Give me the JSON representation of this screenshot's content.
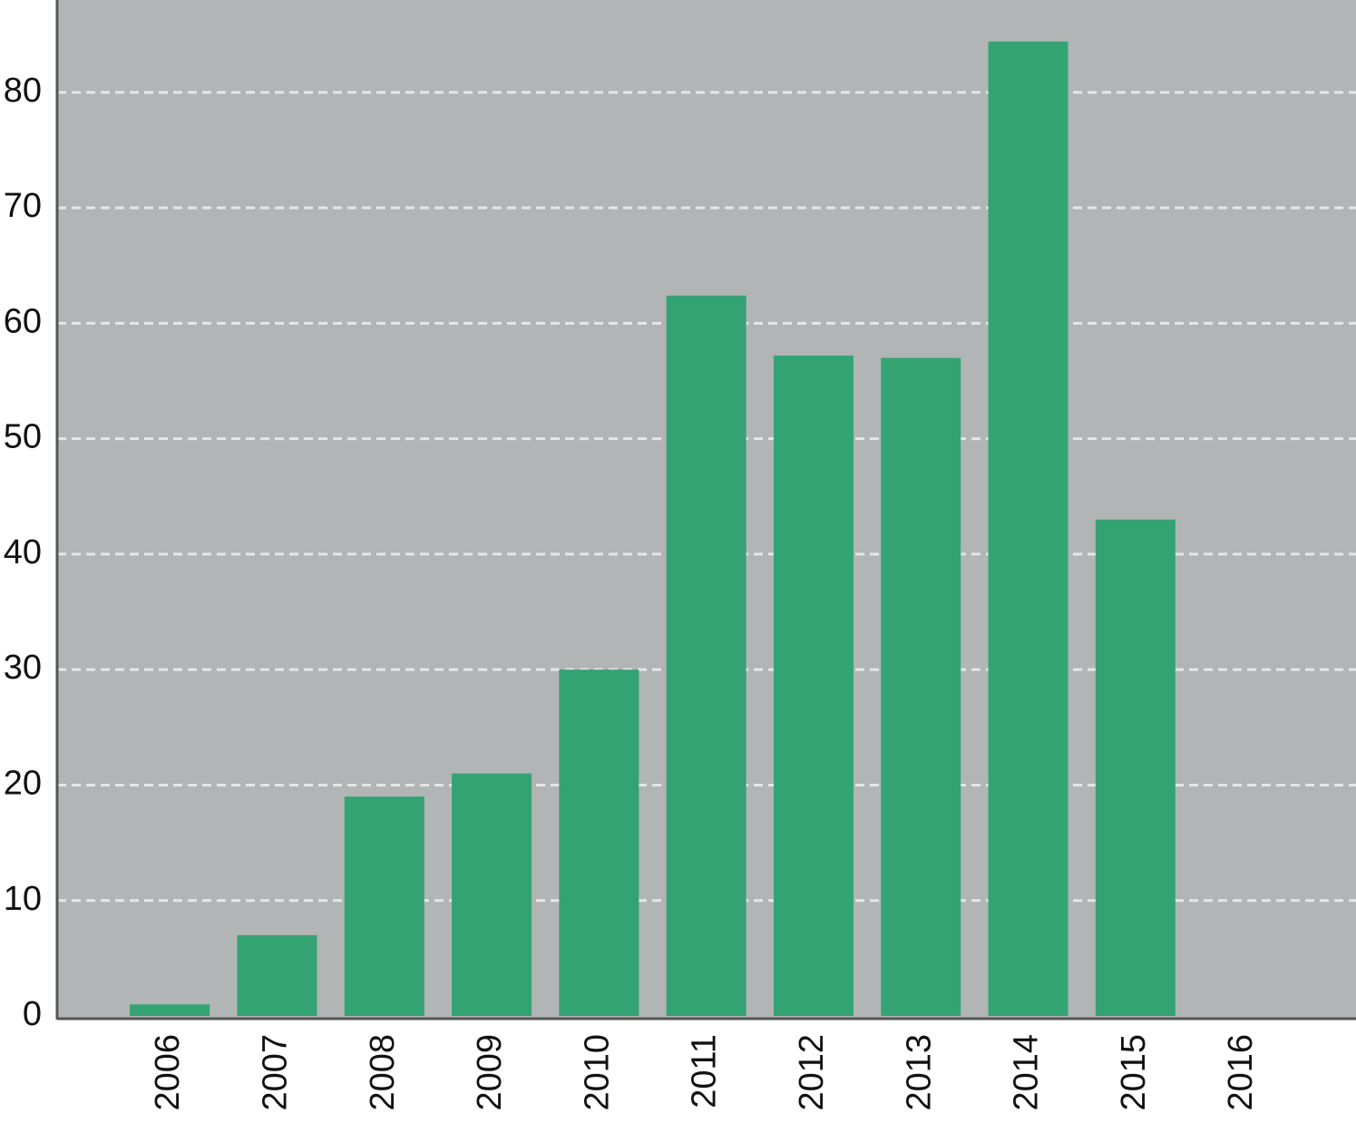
{
  "chart_data": {
    "type": "bar",
    "categories": [
      "2006",
      "2007",
      "2008",
      "2009",
      "2010",
      "2011",
      "2012",
      "2013",
      "2014",
      "2015",
      "2016"
    ],
    "values": [
      1,
      7,
      19,
      21,
      30,
      62.4,
      57.2,
      57,
      84.4,
      43,
      0
    ],
    "color": "#34a373",
    "ylim": [
      0,
      88
    ],
    "yticks": [
      0,
      10,
      20,
      30,
      40,
      50,
      60,
      70,
      80
    ],
    "grid": true
  }
}
